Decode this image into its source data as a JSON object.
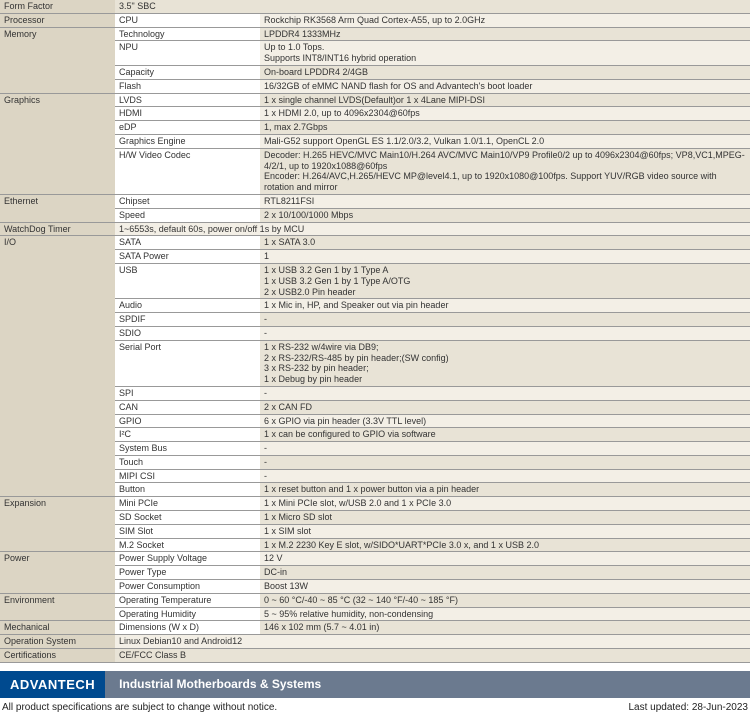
{
  "colors": {
    "cat_bg": "#dcd5c4",
    "val_bg1": "#e8e3d6",
    "val_bg2": "#f3efe6",
    "border": "#999999",
    "logo_bg": "#004a8f",
    "title_bg": "#6b7a8f"
  },
  "sections": [
    {
      "name": "Form Factor",
      "rows": [
        {
          "sub": "",
          "val": "3.5\" SBC"
        }
      ]
    },
    {
      "name": "Processor",
      "rows": [
        {
          "sub": "CPU",
          "val": "Rockchip RK3568 Arm Quad Cortex-A55, up to 2.0GHz"
        }
      ]
    },
    {
      "name": "Memory",
      "rows": [
        {
          "sub": "Technology",
          "val": "LPDDR4 1333MHz"
        },
        {
          "sub": "NPU",
          "val": "Up to 1.0 Tops.\nSupports INT8/INT16 hybrid operation"
        },
        {
          "sub": "Capacity",
          "val": "On-board LPDDR4 2/4GB"
        },
        {
          "sub": "Flash",
          "val": "16/32GB of eMMC NAND flash for OS and Advantech's boot loader"
        }
      ]
    },
    {
      "name": "Graphics",
      "rows": [
        {
          "sub": "LVDS",
          "val": "1 x single channel LVDS(Default)or 1 x 4Lane MIPI-DSI"
        },
        {
          "sub": "HDMI",
          "val": "1 x HDMI 2.0, up to 4096x2304@60fps"
        },
        {
          "sub": "eDP",
          "val": "1, max 2.7Gbps"
        },
        {
          "sub": "Graphics Engine",
          "val": "Mali-G52 support OpenGL ES 1.1/2.0/3.2, Vulkan 1.0/1.1, OpenCL 2.0"
        },
        {
          "sub": "H/W Video Codec",
          "val": "Decoder: H.265 HEVC/MVC Main10/H.264 AVC/MVC Main10/VP9 Profile0/2  up to 4096x2304@60fps; VP8,VC1,MPEG-4/2/1, up to 1920x1088@60fps\nEncoder: H.264/AVC,H.265/HEVC MP@level4.1, up to 1920x1080@100fps. Support YUV/RGB video source with rotation and mirror"
        }
      ]
    },
    {
      "name": "Ethernet",
      "rows": [
        {
          "sub": "Chipset",
          "val": "RTL8211FSI"
        },
        {
          "sub": "Speed",
          "val": "2 x 10/100/1000 Mbps"
        }
      ]
    },
    {
      "name": "WatchDog Timer",
      "rows": [
        {
          "sub": "",
          "val": "1~6553s, default 60s, power on/off 1s by MCU"
        }
      ]
    },
    {
      "name": "I/O",
      "rows": [
        {
          "sub": "SATA",
          "val": "1 x SATA 3.0"
        },
        {
          "sub": "SATA Power",
          "val": "1"
        },
        {
          "sub": "USB",
          "val": "1 x USB 3.2 Gen 1 by 1 Type A\n1 x USB 3.2 Gen 1 by 1 Type A/OTG\n2 x USB2.0 Pin header"
        },
        {
          "sub": "Audio",
          "val": "1 x Mic in, HP, and Speaker out via pin header"
        },
        {
          "sub": "SPDIF",
          "val": "-"
        },
        {
          "sub": "SDIO",
          "val": "-"
        },
        {
          "sub": "Serial Port",
          "val": "1 x RS-232 w/4wire via DB9;\n2 x RS-232/RS-485 by pin header;(SW config)\n3 x RS-232 by pin header;\n1 x Debug by pin header"
        },
        {
          "sub": "SPI",
          "val": "-"
        },
        {
          "sub": "CAN",
          "val": "2 x CAN FD"
        },
        {
          "sub": "GPIO",
          "val": "6 x GPIO via pin header (3.3V TTL level)"
        },
        {
          "sub": "I²C",
          "val": "1 x can be configured to GPIO via software"
        },
        {
          "sub": "System Bus",
          "val": "-"
        },
        {
          "sub": "Touch",
          "val": "-"
        },
        {
          "sub": "MIPI CSI",
          "val": "-"
        },
        {
          "sub": "Button",
          "val": "1 x reset button and 1 x power button via a pin header"
        }
      ]
    },
    {
      "name": "Expansion",
      "rows": [
        {
          "sub": "Mini PCIe",
          "val": "1 x Mini PCIe slot, w/USB 2.0 and 1 x PCIe 3.0"
        },
        {
          "sub": "SD Socket",
          "val": "1 x Micro SD slot"
        },
        {
          "sub": "SIM Slot",
          "val": "1 x SIM slot"
        },
        {
          "sub": "M.2 Socket",
          "val": "1 x M.2 2230 Key E slot, w/SIDO*UART*PCIe 3.0 x, and 1 x USB 2.0"
        }
      ]
    },
    {
      "name": "Power",
      "rows": [
        {
          "sub": "Power Supply Voltage",
          "val": "12 V"
        },
        {
          "sub": "Power Type",
          "val": "DC-in"
        },
        {
          "sub": "Power Consumption",
          "val": "Boost 13W"
        }
      ]
    },
    {
      "name": "Environment",
      "rows": [
        {
          "sub": "Operating Temperature",
          "val": "0 ~ 60 °C/-40 ~ 85 °C (32 ~ 140 °F/-40 ~ 185 °F)"
        },
        {
          "sub": "Operating Humidity",
          "val": "5 ~ 95% relative humidity, non-condensing"
        }
      ]
    },
    {
      "name": "Mechanical",
      "rows": [
        {
          "sub": "Dimensions (W x D)",
          "val": "146 x 102 mm (5.7 ~ 4.01 in)"
        }
      ]
    },
    {
      "name": "Operation System",
      "rows": [
        {
          "sub": "",
          "val": "Linux Debian10 and Android12"
        }
      ]
    },
    {
      "name": "Certifications",
      "rows": [
        {
          "sub": "",
          "val": "CE/FCC Class B"
        }
      ]
    }
  ],
  "footer": {
    "logo": "ADVANTECH",
    "section_title": "Industrial Motherboards & Systems",
    "note_left": "All product specifications are subject to change without notice.",
    "note_right": "Last updated: 28-Jun-2023"
  }
}
